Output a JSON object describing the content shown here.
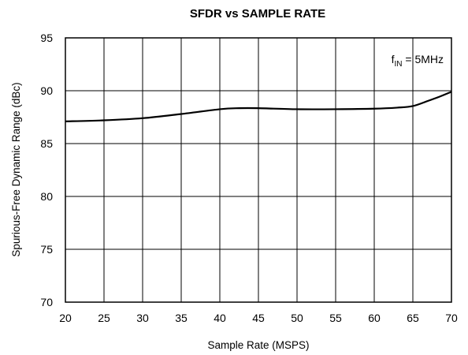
{
  "chart_data": {
    "type": "line",
    "title": "SFDR vs SAMPLE RATE",
    "xlabel": "Sample Rate (MSPS)",
    "ylabel": "Spurious-Free Dynamic Range (dBc)",
    "xlim": [
      20,
      70
    ],
    "ylim": [
      70,
      95
    ],
    "x_ticks": [
      20,
      25,
      30,
      35,
      40,
      45,
      50,
      55,
      60,
      65,
      70
    ],
    "y_ticks": [
      70,
      75,
      80,
      85,
      90,
      95
    ],
    "x_tick_labels": [
      "20",
      "25",
      "30",
      "35",
      "40",
      "45",
      "50",
      "55",
      "60",
      "65",
      "70"
    ],
    "y_tick_labels": [
      "70",
      "75",
      "80",
      "85",
      "90",
      "95"
    ],
    "grid": true,
    "annotation": {
      "prefix": "f",
      "subscript": "IN",
      "suffix": " = 5MHz",
      "placement": "top-right"
    },
    "series": [
      {
        "color": "#000000",
        "x": [
          20,
          25,
          30,
          35,
          40,
          42.5,
          45,
          50,
          55,
          60,
          63,
          65,
          67,
          68.5,
          70
        ],
        "y": [
          87.1,
          87.2,
          87.4,
          87.8,
          88.25,
          88.35,
          88.35,
          88.25,
          88.25,
          88.3,
          88.4,
          88.55,
          89.05,
          89.45,
          89.9
        ]
      }
    ]
  }
}
